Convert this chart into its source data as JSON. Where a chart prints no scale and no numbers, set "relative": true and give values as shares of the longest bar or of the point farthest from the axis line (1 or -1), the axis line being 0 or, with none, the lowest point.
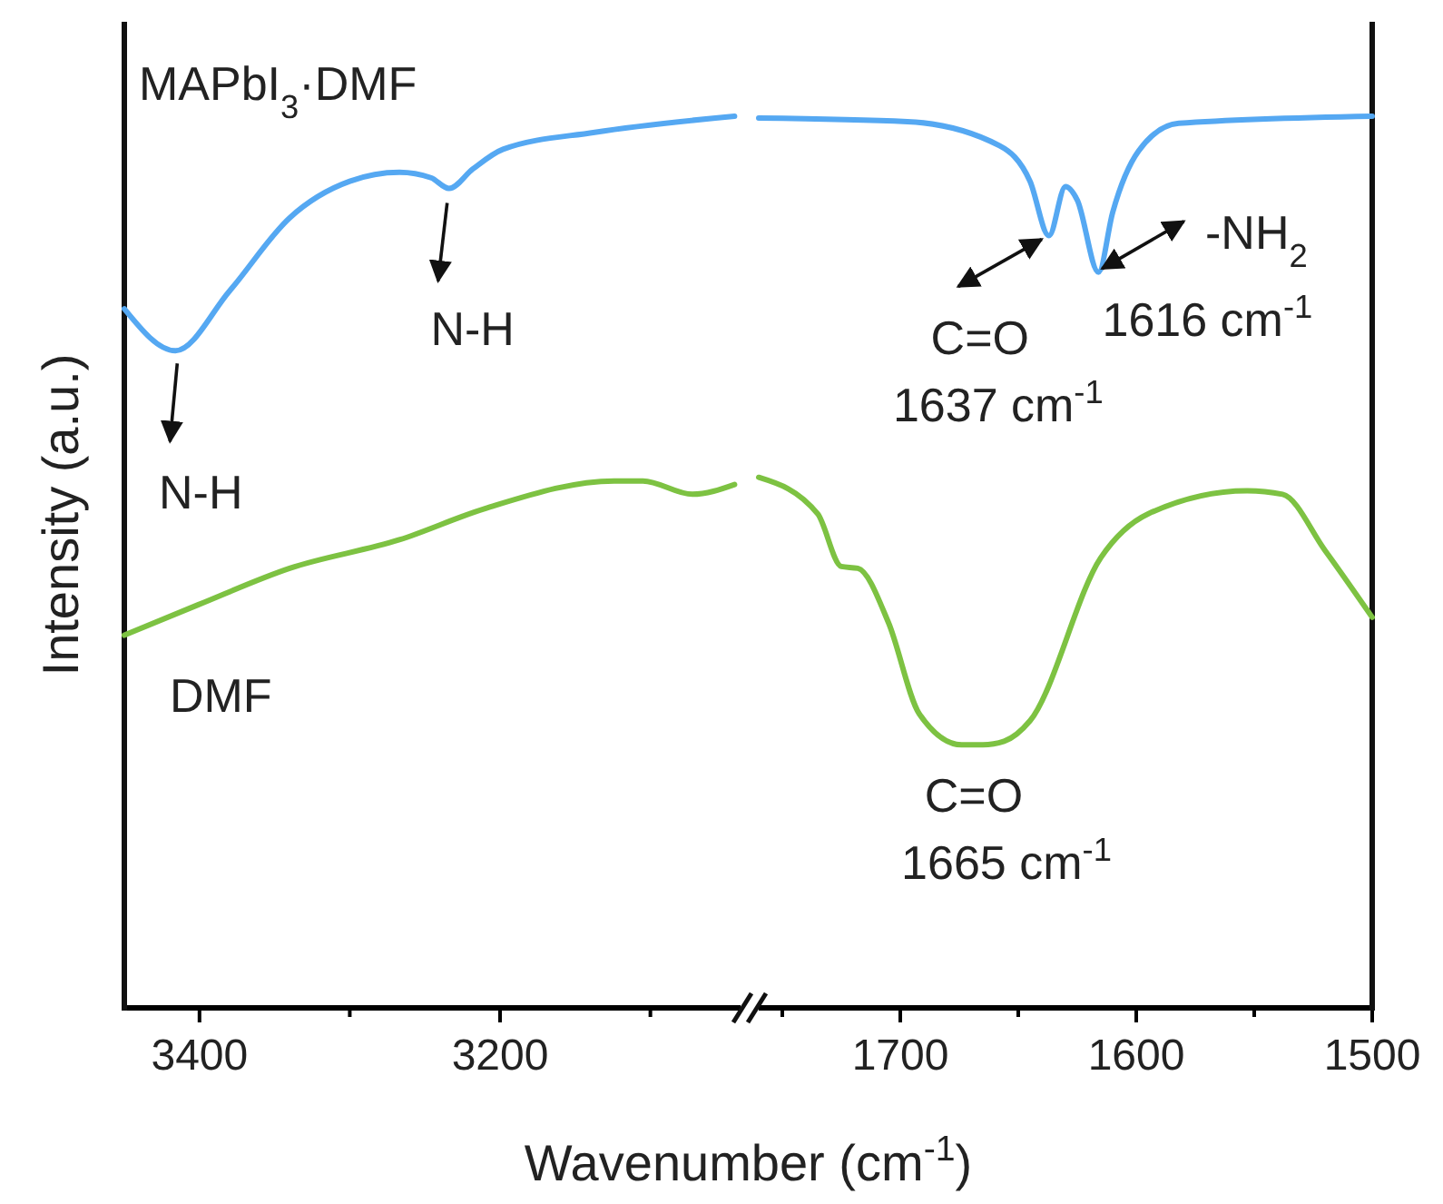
{
  "chart_data": [
    {
      "type": "line",
      "relative": true,
      "ylabel": "Intensity (a.u.)",
      "xlabel": "Wavenumber (cm$^{-1}$)",
      "xlim": [
        3450,
        3040
      ],
      "xticks": [
        3400,
        {
          "value": 3300,
          "label": null
        },
        3200,
        {
          "value": 3100,
          "label": null
        }
      ],
      "tick_labels": "x",
      "series": [
        {
          "name": "MAPbI$_{3}$·DMF",
          "color": "#55a8f2",
          "x": [
            3450,
            3416,
            3380,
            3340,
            3300,
            3267,
            3246,
            3234,
            3218,
            3198,
            3137,
            3044
          ],
          "values": [
            0.784,
            0.737,
            0.804,
            0.886,
            0.927,
            0.937,
            0.931,
            0.919,
            0.941,
            0.963,
            0.982,
            1
          ]
        },
        {
          "name": "DMF",
          "color": "#7dc242",
          "x": [
            3450,
            3401,
            3340,
            3267,
            3210,
            3124,
            3105,
            3072,
            3044
          ],
          "values": [
            0.418,
            0.452,
            0.493,
            0.525,
            0.56,
            0.591,
            0.591,
            0.576,
            0.587
          ]
        }
      ],
      "annotations": [
        {
          "text": "N-H",
          "x": 3416,
          "y": 0.737
        },
        {
          "text": "N-H",
          "x": 3234,
          "y": 0.919
        }
      ]
    },
    {
      "type": "line",
      "relative": true,
      "xlim": [
        1760,
        1500
      ],
      "xticks": [
        {
          "value": 1750,
          "label": null
        },
        1700,
        {
          "value": 1650,
          "label": null
        },
        1600,
        {
          "value": 1550,
          "label": null
        },
        1500
      ],
      "tick_labels": "x",
      "series": [
        {
          "color": "#55a8f2",
          "x": [
            1760,
            1697,
            1658,
            1645,
            1637,
            1630,
            1625,
            1616,
            1610,
            1599,
            1582,
            1500
          ],
          "values": [
            0.998,
            0.994,
            0.967,
            0.927,
            0.866,
            0.921,
            0.906,
            0.825,
            0.892,
            0.961,
            0.992,
            1
          ]
        },
        {
          "color": "#7dc242",
          "x": [
            1760,
            1735,
            1725,
            1718,
            1705,
            1692,
            1674,
            1665,
            1656,
            1645,
            1615,
            1595,
            1553,
            1538,
            1520,
            1500
          ],
          "values": [
            0.595,
            0.554,
            0.495,
            0.493,
            0.432,
            0.33,
            0.295,
            0.295,
            0.299,
            0.322,
            0.505,
            0.554,
            0.58,
            0.576,
            0.513,
            0.438
          ]
        }
      ],
      "annotations": [
        {
          "text": "C=O\n1637 cm$^{-1}$",
          "x": 1637,
          "y": 0.866
        },
        {
          "text": "-NH$_{2}$\n1616 cm$^{-1}$",
          "x": 1616,
          "y": 0.825
        },
        {
          "text": "C=O\n1665 cm$^{-1}$",
          "x": 1665,
          "y": 0.295
        }
      ]
    }
  ]
}
